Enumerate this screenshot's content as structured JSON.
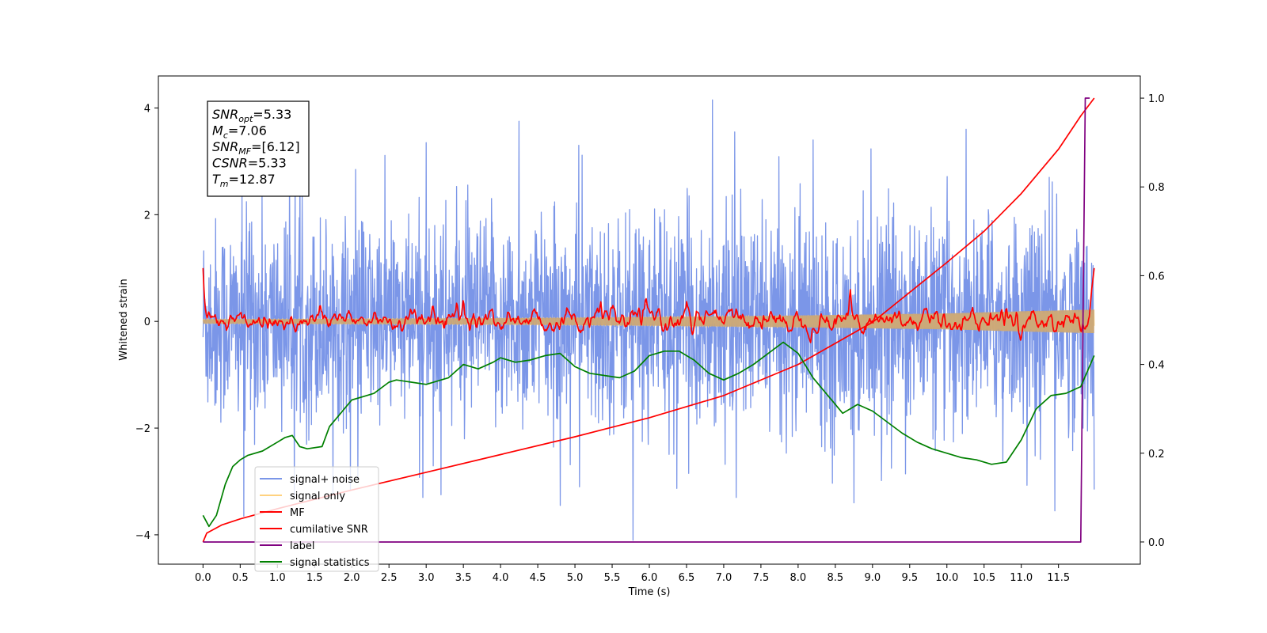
{
  "chart_data": {
    "type": "line",
    "title": "",
    "xlabel": "Time (s)",
    "ylabel": "Whitened strain",
    "xlim": [
      -0.6,
      12.6
    ],
    "ylim": [
      -4.55,
      4.6
    ],
    "y2lim": [
      -0.05,
      1.05
    ],
    "x_ticks": [
      0.0,
      0.5,
      1.0,
      1.5,
      2.0,
      2.5,
      3.0,
      3.5,
      4.0,
      4.5,
      5.0,
      5.5,
      6.0,
      6.5,
      7.0,
      7.5,
      8.0,
      8.5,
      9.0,
      9.5,
      10.0,
      10.5,
      11.0,
      11.5
    ],
    "x_tick_labels": [
      "0.0",
      "0.5",
      "1.0",
      "1.5",
      "2.0",
      "2.5",
      "3.0",
      "3.5",
      "4.0",
      "4.5",
      "5.0",
      "5.5",
      "6.0",
      "6.5",
      "7.0",
      "7.5",
      "8.0",
      "8.5",
      "9.0",
      "9.5",
      "10.0",
      "10.5",
      "11.0",
      "11.5"
    ],
    "y_ticks": [
      -4,
      -2,
      0,
      2,
      4
    ],
    "y_tick_labels": [
      "−4",
      "−2",
      "0",
      "2",
      "4"
    ],
    "y2_ticks": [
      0.0,
      0.2,
      0.4,
      0.6,
      0.8,
      1.0
    ],
    "y2_tick_labels": [
      "0.0",
      "0.2",
      "0.4",
      "0.6",
      "0.8",
      "1.0"
    ],
    "grid": false,
    "legend": {
      "position": "lower-left",
      "entries": [
        {
          "label": "signal+ noise",
          "color": "#7b96e8"
        },
        {
          "label": "signal only",
          "color": "#ffd27f"
        },
        {
          "label": "MF",
          "color": "#ff0000"
        },
        {
          "label": "cumilative SNR",
          "color": "#ff0000"
        },
        {
          "label": "label",
          "color": "#800080"
        },
        {
          "label": "signal statistics",
          "color": "#008000"
        }
      ]
    },
    "annotation": {
      "position": "top-left",
      "lines": [
        {
          "sym": "SNR",
          "sub": "opt",
          "value": "=5.33"
        },
        {
          "sym": "M",
          "sub": "c",
          "value": "=7.06"
        },
        {
          "sym": "SNR",
          "sub": "MF",
          "value": "=[6.12]"
        },
        {
          "sym": "CSNR",
          "sub": "",
          "value": "=5.33"
        },
        {
          "sym": "T",
          "sub": "m",
          "value": "=12.87"
        }
      ]
    },
    "series": [
      {
        "name": "signal+ noise",
        "axis": "left",
        "color": "#7b96e8",
        "x_range": [
          0.0,
          11.98
        ],
        "description": "dense noisy whitened strain, roughly between -2.5 and 2.5 with spikes up to 4.2 and down to -4.1",
        "envelope": {
          "upper_typical": 2.2,
          "lower_typical": -2.3,
          "max": 4.15,
          "min": -4.1
        },
        "spikes": [
          {
            "x": 6.85,
            "y": 4.15
          },
          {
            "x": 5.78,
            "y": -4.1
          },
          {
            "x": 4.25,
            "y": 3.75
          },
          {
            "x": 3.0,
            "y": 3.35
          },
          {
            "x": 7.15,
            "y": 3.55
          },
          {
            "x": 8.2,
            "y": 3.4
          },
          {
            "x": 0.55,
            "y": -3.65
          },
          {
            "x": 8.75,
            "y": -3.4
          },
          {
            "x": 11.45,
            "y": -3.55
          },
          {
            "x": 4.8,
            "y": -3.45
          },
          {
            "x": 3.2,
            "y": -3.25
          },
          {
            "x": 11.98,
            "y": -3.15
          }
        ]
      },
      {
        "name": "signal only",
        "axis": "left",
        "color": "#ffd27f",
        "description": "chirp signal with slowly growing amplitude",
        "x": [
          0.0,
          2.0,
          4.0,
          6.0,
          8.0,
          10.0,
          11.0,
          11.98
        ],
        "amplitude": [
          0.04,
          0.05,
          0.06,
          0.08,
          0.11,
          0.15,
          0.19,
          0.22
        ]
      },
      {
        "name": "MF",
        "axis": "left",
        "color": "#ff0000",
        "description": "matched-filter output oscillating around 0",
        "x_range": [
          0.0,
          11.98
        ],
        "start_value": 1.0,
        "end_value": 1.0,
        "typical_range": [
          -0.25,
          0.35
        ],
        "peaks": [
          {
            "x": 8.7,
            "y": 0.65
          },
          {
            "x": 3.5,
            "y": 0.42
          },
          {
            "x": 5.35,
            "y": 0.48
          },
          {
            "x": 10.8,
            "y": 0.5
          }
        ]
      },
      {
        "name": "cumilative SNR",
        "axis": "right",
        "color": "#ff0000",
        "x": [
          0.0,
          0.05,
          0.25,
          0.5,
          1.0,
          2.0,
          3.0,
          4.0,
          5.0,
          6.0,
          7.0,
          8.0,
          9.0,
          10.0,
          10.5,
          11.0,
          11.5,
          11.8,
          11.98
        ],
        "y": [
          0.0,
          0.02,
          0.038,
          0.052,
          0.075,
          0.117,
          0.157,
          0.197,
          0.237,
          0.28,
          0.33,
          0.4,
          0.495,
          0.63,
          0.7,
          0.785,
          0.885,
          0.96,
          1.0
        ]
      },
      {
        "name": "label",
        "axis": "right",
        "color": "#800080",
        "x": [
          0.0,
          11.8,
          11.86,
          11.92
        ],
        "y": [
          0.0,
          0.0,
          1.0,
          1.0
        ]
      },
      {
        "name": "signal statistics",
        "axis": "right",
        "color": "#008000",
        "x": [
          0.0,
          0.08,
          0.18,
          0.3,
          0.4,
          0.5,
          0.6,
          0.8,
          1.0,
          1.1,
          1.2,
          1.3,
          1.4,
          1.6,
          1.7,
          1.8,
          2.0,
          2.2,
          2.3,
          2.5,
          2.6,
          2.8,
          3.0,
          3.2,
          3.3,
          3.5,
          3.7,
          3.9,
          4.0,
          4.2,
          4.4,
          4.6,
          4.8,
          5.0,
          5.2,
          5.4,
          5.6,
          5.8,
          6.0,
          6.2,
          6.4,
          6.6,
          6.8,
          7.0,
          7.2,
          7.4,
          7.6,
          7.8,
          8.0,
          8.2,
          8.4,
          8.6,
          8.8,
          9.0,
          9.2,
          9.4,
          9.6,
          9.8,
          10.0,
          10.2,
          10.4,
          10.6,
          10.8,
          11.0,
          11.2,
          11.4,
          11.6,
          11.8,
          11.98
        ],
        "y": [
          0.06,
          0.035,
          0.06,
          0.13,
          0.17,
          0.185,
          0.195,
          0.205,
          0.225,
          0.235,
          0.24,
          0.215,
          0.21,
          0.215,
          0.26,
          0.28,
          0.32,
          0.33,
          0.335,
          0.36,
          0.365,
          0.36,
          0.355,
          0.365,
          0.37,
          0.4,
          0.39,
          0.405,
          0.415,
          0.405,
          0.41,
          0.42,
          0.425,
          0.395,
          0.38,
          0.375,
          0.37,
          0.385,
          0.42,
          0.43,
          0.43,
          0.41,
          0.38,
          0.365,
          0.38,
          0.4,
          0.425,
          0.45,
          0.425,
          0.37,
          0.33,
          0.29,
          0.31,
          0.295,
          0.27,
          0.245,
          0.225,
          0.21,
          0.2,
          0.19,
          0.185,
          0.175,
          0.18,
          0.23,
          0.3,
          0.33,
          0.335,
          0.35,
          0.42
        ]
      }
    ]
  }
}
